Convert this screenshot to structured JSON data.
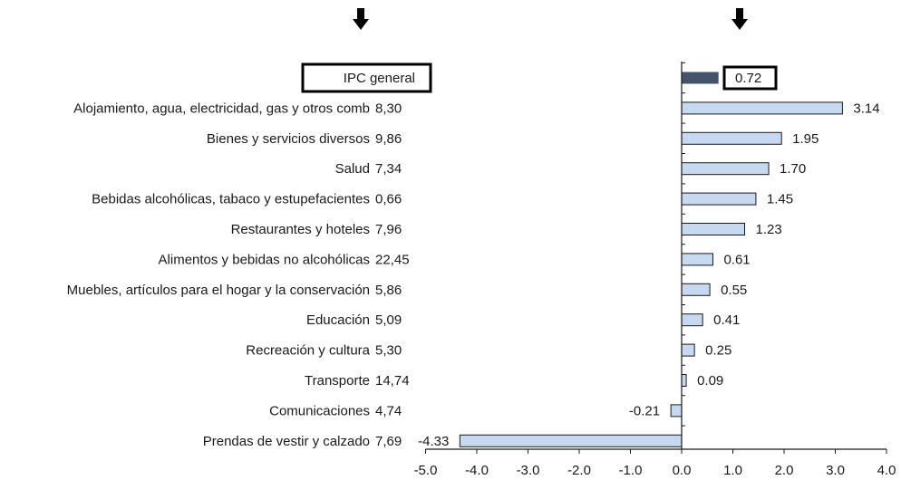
{
  "chart_data": {
    "type": "bar",
    "orientation": "horizontal",
    "categories": [
      {
        "label": "IPC general",
        "weight": ""
      },
      {
        "label": "Alojamiento, agua, electricidad, gas y otros comb",
        "weight": "8,30"
      },
      {
        "label": "Bienes y servicios diversos",
        "weight": "9,86"
      },
      {
        "label": "Salud",
        "weight": "7,34"
      },
      {
        "label": "Bebidas alcohólicas, tabaco y estupefacientes",
        "weight": "0,66"
      },
      {
        "label": "Restaurantes y hoteles",
        "weight": "7,96"
      },
      {
        "label": "Alimentos y bebidas no alcohólicas",
        "weight": "22,45"
      },
      {
        "label": "Muebles, artículos para el hogar y la conservación",
        "weight": "5,86"
      },
      {
        "label": "Educación",
        "weight": "5,09"
      },
      {
        "label": "Recreación y cultura",
        "weight": "5,30"
      },
      {
        "label": "Transporte",
        "weight": "14,74"
      },
      {
        "label": "Comunicaciones",
        "weight": "4,74"
      },
      {
        "label": "Prendas de vestir y calzado",
        "weight": "7,69"
      }
    ],
    "values": [
      0.72,
      3.14,
      1.95,
      1.7,
      1.45,
      1.23,
      0.61,
      0.55,
      0.41,
      0.25,
      0.09,
      -0.21,
      -4.33
    ],
    "value_labels": [
      "0.72",
      "3.14",
      "1.95",
      "1.70",
      "1.45",
      "1.23",
      "0.61",
      "0.55",
      "0.41",
      "0.25",
      "0.09",
      "-0.21",
      "-4.33"
    ],
    "xlim": [
      -5.0,
      4.0
    ],
    "xticks": [
      "-5.0",
      "-4.0",
      "-3.0",
      "-2.0",
      "-1.0",
      "0.0",
      "1.0",
      "2.0",
      "3.0",
      "4.0"
    ],
    "highlighted_category": "IPC general",
    "arrows": [
      "category-column",
      "value-column"
    ],
    "colors": {
      "bar_fill": "#c6d9f1",
      "bar_stroke": "#1a1a1a",
      "highlight_fill": "#44546a",
      "axis": "#1a1a1a",
      "box_stroke": "#000000"
    }
  }
}
